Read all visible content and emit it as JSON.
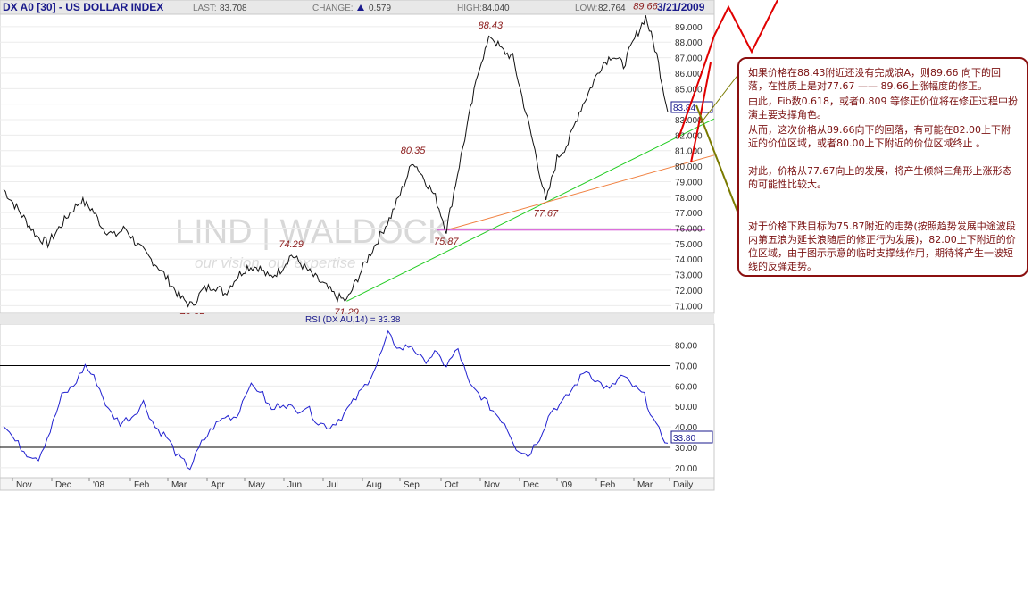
{
  "header": {
    "symbol": "DX A0 [30] - US DOLLAR INDEX",
    "last_label": "LAST:",
    "last": "83.708",
    "change_label": "CHANGE:",
    "change": "0.579",
    "high_label": "HIGH:",
    "high": "84.040",
    "low_label": "LOW:",
    "low": "82.764",
    "date": "3/21/2009"
  },
  "watermark": {
    "line1": "LIND | WALDOCK",
    "line2": "our vision. our expertise"
  },
  "rsi": {
    "label": "RSI (DX AU,14) = 33.38",
    "current": "33.80"
  },
  "price_panel_current": "83.84",
  "period": "Daily",
  "annotations": {
    "note1": [
      "如果价格在88.43附近还没有完成浪A，则89.66 向下的回落，在性质上是对77.67 —— 89.66上涨幅度的修正。",
      "由此，Fib数0.618，或者0.809 等修正价位将在修正过程中扮演主要支撑角色。",
      "从而，这次价格从89.66向下的回落，有可能在82.00上下附近的价位区域，或者80.00上下附近的价位区域终止 。"
    ],
    "note2": "对此，价格从77.67向上的发展，将产生倾斜三角形上涨形态的可能性比较大。",
    "note3": "对于价格下跌目标为75.87附近的走势(按照趋势发展中途波段内第五浪为延长浪随后的修正行为发展)，82.00上下附近的价位区域，由于图示示意的临时支撑线作用，期待将产生一波短线的反弹走势。"
  },
  "chart_data": [
    {
      "type": "line",
      "title": "DX A0 [30] - US DOLLAR INDEX",
      "ylim": [
        70.5,
        89.8
      ],
      "y_ticks": [
        71,
        72,
        73,
        74,
        75,
        76,
        77,
        78,
        79,
        80,
        81,
        82,
        83,
        84,
        85,
        86,
        87,
        88,
        89
      ],
      "y_tick_labels": [
        "71.000",
        "72.000",
        "73.000",
        "74.000",
        "75.000",
        "76.000",
        "77.000",
        "78.000",
        "79.000",
        "80.000",
        "81.000",
        "82.000",
        "83.000",
        "84.000",
        "85.000",
        "86.000",
        "87.000",
        "88.000",
        "89.000"
      ],
      "x_labels": [
        "Nov",
        "Dec",
        "'08",
        "Feb",
        "Mar",
        "Apr",
        "May",
        "Jun",
        "Jul",
        "Aug",
        "Sep",
        "Oct",
        "Nov",
        "Dec",
        "'09",
        "Feb",
        "Mar",
        "Daily"
      ],
      "series": [
        {
          "values": [
            78.5,
            77.5,
            76.5,
            75.5,
            75.0,
            76.0,
            77.0,
            77.8,
            77.2,
            76.0,
            75.5,
            76.0,
            75.0,
            74.2,
            73.5,
            72.5,
            71.5,
            71.0,
            72.0,
            72.3,
            71.8,
            72.8,
            73.5,
            73.5,
            72.8,
            73.3,
            74.29,
            73.6,
            72.9,
            72.3,
            71.6,
            71.3,
            72.8,
            74.2,
            75.5,
            76.8,
            78.5,
            80.35,
            79.2,
            78.0,
            75.87,
            79.5,
            83.0,
            86.5,
            88.43,
            87.5,
            87.0,
            84.0,
            81.0,
            77.67,
            80.5,
            81.5,
            83.5,
            85.0,
            86.5,
            87.2,
            86.5,
            88.2,
            89.66,
            87.2,
            83.5
          ]
        }
      ],
      "point_labels": [
        "70.65",
        "74.29",
        "71.29",
        "80.35",
        "75.87",
        "88.43",
        "77.67",
        "89.66"
      ],
      "trendlines": [
        "green support line from 71.29",
        "orange line from 75.87 through 77.67",
        "magenta horizontal line at 75.87"
      ]
    },
    {
      "type": "line",
      "title": "RSI (DX AU,14) = 33.38",
      "ylim": [
        16,
        89
      ],
      "y_ticks": [
        20,
        30,
        40,
        50,
        60,
        70,
        80
      ],
      "y_tick_labels": [
        "20.00",
        "30.00",
        "40.00",
        "50.00",
        "60.00",
        "70.00",
        "80.00"
      ],
      "reference_lines": [
        70,
        30
      ],
      "series": [
        {
          "values": [
            42,
            33,
            27,
            25,
            38,
            55,
            60,
            70,
            62,
            48,
            42,
            45,
            52,
            40,
            35,
            25,
            20,
            32,
            40,
            45,
            45,
            60,
            58,
            48,
            52,
            48,
            50,
            42,
            40,
            45,
            52,
            60,
            70,
            85,
            78,
            80,
            72,
            76,
            70,
            78,
            60,
            55,
            48,
            42,
            30,
            26,
            35,
            48,
            52,
            60,
            68,
            62,
            58,
            65,
            60,
            55,
            40,
            32
          ]
        }
      ]
    }
  ]
}
